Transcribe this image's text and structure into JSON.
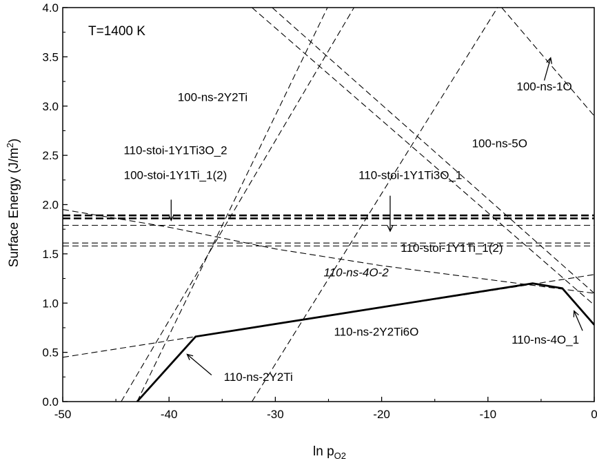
{
  "chart_data": {
    "type": "line",
    "xlabel": "ln p",
    "xlabel_sub": "O2",
    "ylabel": "Surface Energy (J/m",
    "ylabel_sup": "2",
    "ylabel_close": ")",
    "xlim": [
      -50,
      0
    ],
    "ylim": [
      0,
      4
    ],
    "xticks": [
      -50,
      -40,
      -30,
      -20,
      -10,
      0
    ],
    "xtick_labels": [
      "-50",
      "-40",
      "-30",
      "-20",
      "-10",
      "0"
    ],
    "yticks": [
      0,
      0.5,
      1,
      1.5,
      2,
      2.5,
      3,
      3.5,
      4
    ],
    "ytick_labels": [
      "0.0",
      "0.5",
      "1.0",
      "1.5",
      "2.0",
      "2.5",
      "3.0",
      "3.5",
      "4.0"
    ],
    "condition": "T=1400 K",
    "series": [
      {
        "name": "100-ns-2Y2Ti",
        "style": "dashed",
        "points": [
          [
            -44.5,
            0
          ],
          [
            -22.6,
            4
          ]
        ]
      },
      {
        "name": "110-ns-2Y2Ti",
        "style": "dashed",
        "points": [
          [
            -43.0,
            0
          ],
          [
            -25.1,
            4
          ]
        ]
      },
      {
        "name": "110-ns-2Y2Ti6O",
        "style": "dashed",
        "points": [
          [
            -50,
            0.45
          ],
          [
            -37.5,
            0.66
          ],
          [
            0,
            1.29
          ]
        ]
      },
      {
        "name": "110-ns-4O-2",
        "style": "dashed",
        "points": [
          [
            -50,
            1.95
          ],
          [
            -40,
            1.77
          ],
          [
            -30,
            1.55
          ],
          [
            -20,
            1.38
          ],
          [
            -10,
            1.24
          ],
          [
            0,
            1.1
          ]
        ]
      },
      {
        "name": "100-ns-5O_a",
        "style": "dashed",
        "points": [
          [
            -32.2,
            4
          ],
          [
            0,
            0.98
          ]
        ]
      },
      {
        "name": "100-ns-5O_b",
        "style": "dashed",
        "points": [
          [
            -30.3,
            4
          ],
          [
            0,
            1.1
          ]
        ]
      },
      {
        "name": "110-ns-4O_1",
        "style": "dashed",
        "points": [
          [
            -32.2,
            0
          ],
          [
            -9.1,
            4
          ]
        ]
      },
      {
        "name": "100-ns-1O",
        "style": "dashed",
        "points": [
          [
            -8.7,
            4
          ],
          [
            0,
            2.9
          ]
        ]
      },
      {
        "name": "110-stoi-1Y1Ti3O_2",
        "style": "dashed-bold",
        "points": [
          [
            -50,
            1.89
          ],
          [
            0,
            1.89
          ]
        ]
      },
      {
        "name": "100-stoi-1Y1Ti_1(2)",
        "style": "dashed-bold",
        "points": [
          [
            -50,
            1.86
          ],
          [
            0,
            1.86
          ]
        ]
      },
      {
        "name": "110-stoi-1Y1Ti3O_1",
        "style": "dashed",
        "points": [
          [
            -50,
            1.79
          ],
          [
            0,
            1.79
          ]
        ]
      },
      {
        "name": "110-stoi-1Y1Ti_1(2)",
        "style": "dashed",
        "points": [
          [
            -50,
            1.61
          ],
          [
            0,
            1.61
          ]
        ]
      },
      {
        "name": "110-stoi-1Y1Ti_1(2)_b",
        "style": "dashed",
        "points": [
          [
            -50,
            1.58
          ],
          [
            0,
            1.58
          ]
        ]
      },
      {
        "name": "envelope",
        "style": "solid-bold",
        "points": [
          [
            -43.0,
            0
          ],
          [
            -37.5,
            0.66
          ],
          [
            -5.8,
            1.2
          ],
          [
            -3.0,
            1.15
          ],
          [
            0,
            0.78
          ]
        ]
      }
    ],
    "annotations": [
      {
        "text": "100-ns-2Y2Ti",
        "x": -35.9,
        "y": 3.05,
        "italic": false
      },
      {
        "text": "110-stoi-1Y1Ti3O_2",
        "x": -39.4,
        "y": 2.51,
        "italic": false
      },
      {
        "text": "100-stoi-1Y1Ti_1(2)",
        "x": -39.4,
        "y": 2.26,
        "italic": false
      },
      {
        "text": "110-stoi-1Y1Ti3O_1",
        "x": -17.3,
        "y": 2.26,
        "italic": false
      },
      {
        "text": "100-ns-5O",
        "x": -8.9,
        "y": 2.58,
        "italic": false
      },
      {
        "text": "100-ns-1O",
        "x": -4.7,
        "y": 3.16,
        "italic": false
      },
      {
        "text": "110-stoi-1Y1Ti_1(2)",
        "x": -13.4,
        "y": 1.52,
        "italic": false
      },
      {
        "text": "110-ns-4O-2",
        "x": -22.4,
        "y": 1.27,
        "italic": true
      },
      {
        "text": "110-ns-2Y2Ti6O",
        "x": -20.5,
        "y": 0.67,
        "italic": false
      },
      {
        "text": "110-ns-2Y2Ti",
        "x": -31.6,
        "y": 0.21,
        "italic": false
      },
      {
        "text": "110-ns-4O_1",
        "x": -4.6,
        "y": 0.59,
        "italic": false
      }
    ],
    "arrows": [
      {
        "from": [
          -39.8,
          2.05
        ],
        "to": [
          -39.8,
          1.84
        ]
      },
      {
        "from": [
          -19.2,
          2.09
        ],
        "to": [
          -19.2,
          1.73
        ]
      },
      {
        "from": [
          -4.7,
          3.26
        ],
        "to": [
          -4.1,
          3.49
        ]
      },
      {
        "from": [
          -1.1,
          0.72
        ],
        "to": [
          -1.9,
          0.92
        ]
      },
      {
        "from": [
          -36.0,
          0.27
        ],
        "to": [
          -38.3,
          0.48
        ]
      }
    ],
    "grid": false,
    "legend": "none"
  }
}
